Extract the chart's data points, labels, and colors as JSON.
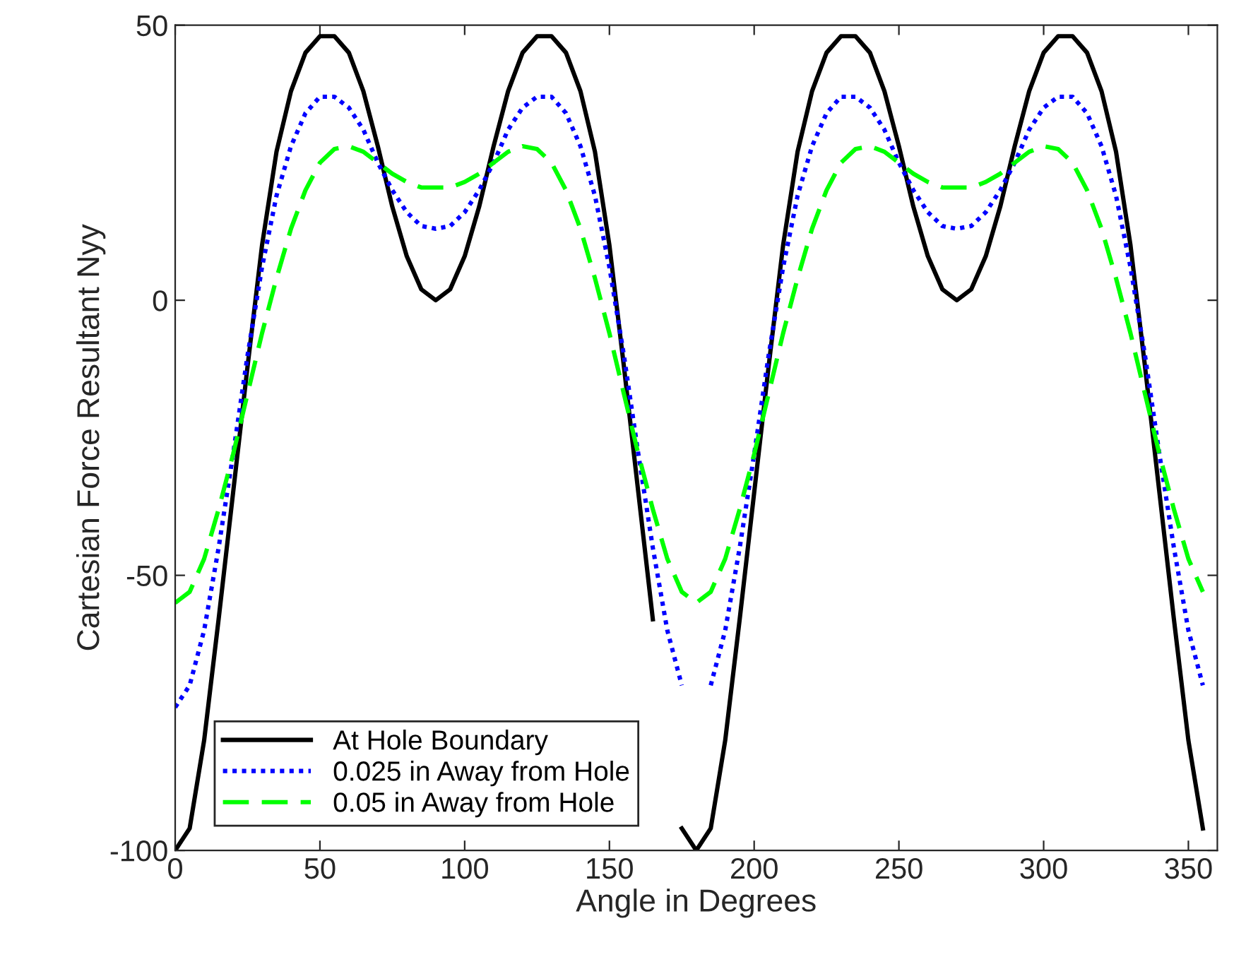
{
  "chart_data": {
    "type": "line",
    "xlabel": "Angle in Degrees",
    "ylabel": "Cartesian Force Resultant Nyy",
    "x": [
      0,
      5,
      10,
      15,
      20,
      25,
      30,
      35,
      40,
      45,
      50,
      55,
      60,
      65,
      70,
      75,
      80,
      85,
      90,
      95,
      100,
      105,
      110,
      115,
      120,
      125,
      130,
      135,
      140,
      145,
      150,
      155,
      160,
      165,
      170,
      175,
      180,
      185,
      190,
      195,
      200,
      205,
      210,
      215,
      220,
      225,
      230,
      235,
      240,
      245,
      250,
      255,
      260,
      265,
      270,
      275,
      280,
      285,
      290,
      295,
      300,
      305,
      310,
      315,
      320,
      325,
      330,
      335,
      340,
      345,
      350,
      355
    ],
    "series": [
      {
        "name": "At Hole Boundary",
        "color": "#000000",
        "line_style": "solid",
        "values": [
          -100,
          -96,
          -80,
          -58,
          -35,
          -12,
          10,
          27,
          38,
          45,
          48,
          48,
          45,
          38,
          28,
          17,
          8,
          2,
          0,
          2,
          8,
          17,
          28,
          38,
          45,
          48,
          48,
          45,
          38,
          27,
          10,
          -12,
          -35,
          -58,
          null,
          -96,
          -100,
          -96,
          -80,
          -58,
          -35,
          -12,
          10,
          27,
          38,
          45,
          48,
          48,
          45,
          38,
          28,
          17,
          8,
          2,
          0,
          2,
          8,
          17,
          28,
          38,
          45,
          48,
          48,
          45,
          38,
          27,
          10,
          -12,
          -35,
          -58,
          -80,
          -96
        ]
      },
      {
        "name": "0.025 in Away from Hole",
        "color": "#0000ff",
        "line_style": "dotted",
        "values": [
          -74,
          -70,
          -60,
          -45,
          -28,
          -10,
          6,
          19,
          28,
          34,
          37,
          37,
          35,
          31,
          25,
          20,
          16,
          13.5,
          13,
          13.5,
          16,
          20,
          25,
          31,
          35,
          37,
          37,
          34,
          28,
          19,
          6,
          -10,
          -28,
          -45,
          -60,
          -70,
          null,
          -70,
          -60,
          -45,
          -28,
          -10,
          6,
          19,
          28,
          34,
          37,
          37,
          35,
          31,
          25,
          20,
          16,
          13.5,
          13,
          13.5,
          16,
          20,
          25,
          31,
          35,
          37,
          37,
          34,
          28,
          19,
          6,
          -10,
          -28,
          -45,
          -60,
          -70
        ]
      },
      {
        "name": "0.05 in Away from Hole",
        "color": "#00ff00",
        "line_style": "dashed",
        "values": [
          -55,
          -53,
          -47,
          -38,
          -28,
          -17,
          -6,
          4,
          13,
          20,
          25,
          27.5,
          28,
          27,
          25,
          23,
          21.5,
          20.5,
          20.5,
          20.5,
          21.5,
          23,
          25,
          27,
          28,
          27.5,
          25,
          20,
          13,
          4,
          -6,
          -17,
          -28,
          -38,
          -47,
          -53,
          -55,
          -53,
          -47,
          -38,
          -28,
          -17,
          -6,
          4,
          13,
          20,
          25,
          27.5,
          28,
          27,
          25,
          23,
          21.5,
          20.5,
          20.5,
          20.5,
          21.5,
          23,
          25,
          27,
          28,
          27.5,
          25,
          20,
          13,
          4,
          -6,
          -17,
          -28,
          -38,
          -47,
          -53
        ]
      }
    ],
    "xlim": [
      0,
      360
    ],
    "xticks": [
      0,
      50,
      100,
      150,
      200,
      250,
      300,
      350
    ],
    "ylim": [
      -100,
      50
    ],
    "yticks": [
      -100,
      -50,
      0,
      50
    ],
    "legend": "bottom left",
    "grid": false
  }
}
